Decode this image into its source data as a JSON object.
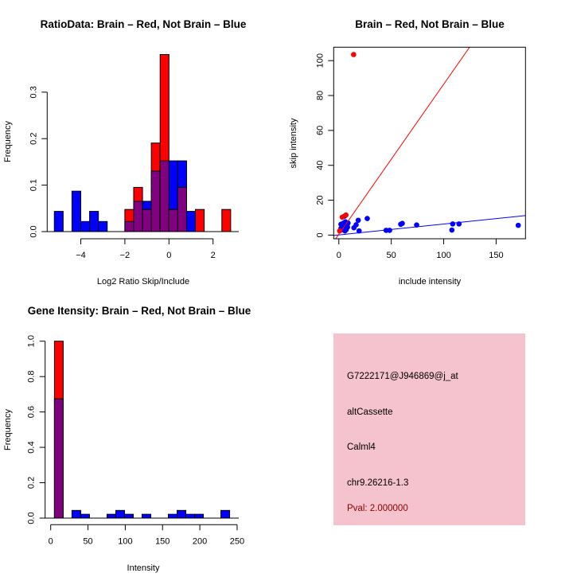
{
  "colors": {
    "brain": "#ff0000",
    "not_brain": "#0000ff",
    "overlap": "#800080",
    "panel_bg": "#f5c3cd",
    "pval": "#8b0000"
  },
  "chart_data": [
    {
      "type": "bar",
      "subtype": "overlaid-histogram",
      "title": "RatioData: Brain – Red, Not Brain – Blue",
      "xlabel": "Log2 Ratio Skip/Include",
      "ylabel": "Frequency",
      "bin_width": 0.4,
      "xticks": [
        -4,
        -2,
        0,
        2
      ],
      "yticks": [
        0,
        0.1,
        0.2,
        0.3
      ],
      "xtick_labels": [
        "−4",
        "−2",
        "0",
        "2"
      ],
      "ytick_labels": [
        "0.0",
        "0.1",
        "0.2",
        "0.3"
      ],
      "bins": [
        -5.2,
        -4.8,
        -4.4,
        -4.0,
        -3.6,
        -3.2,
        -2.8,
        -2.4,
        -2.0,
        -1.6,
        -1.2,
        -0.8,
        -0.4,
        0.0,
        0.4,
        0.8,
        1.2,
        1.6,
        2.0,
        2.4
      ],
      "series": [
        {
          "name": "Not Brain",
          "color": "#0000ff",
          "values": [
            0.0435,
            0,
            0.087,
            0.0217,
            0.0435,
            0.0217,
            0,
            0,
            0.0217,
            0.0652,
            0.0652,
            0.1304,
            0.1522,
            0.1522,
            0.1522,
            0.0435,
            0,
            0,
            0,
            0
          ]
        },
        {
          "name": "Brain",
          "color": "#ff0000",
          "values": [
            0,
            0,
            0,
            0,
            0,
            0,
            0,
            0,
            0.0476,
            0.0952,
            0.0476,
            0.1905,
            0.381,
            0.0476,
            0.0952,
            0,
            0.0476,
            0,
            0,
            0.0476
          ]
        }
      ]
    },
    {
      "type": "scatter",
      "title": "Brain – Red, Not Brain – Blue",
      "xlabel": "include intensity",
      "ylabel": "skip intensity",
      "xlim": [
        -4.9,
        178
      ],
      "ylim": [
        -2.1,
        107.7
      ],
      "xticks": [
        0,
        50,
        100,
        150
      ],
      "yticks": [
        0,
        20,
        40,
        60,
        80,
        100
      ],
      "series": [
        {
          "name": "Not Brain",
          "color": "#0000ff",
          "points": [
            [
              5.3,
              10.8
            ],
            [
              2.0,
              6.2
            ],
            [
              4.5,
              6.9
            ],
            [
              7.0,
              5.4
            ],
            [
              8.3,
              4.6
            ],
            [
              3.3,
              3.1
            ],
            [
              5.8,
              2.4
            ],
            [
              2.0,
              3.8
            ],
            [
              4.5,
              4.6
            ],
            [
              6.3,
              7.6
            ],
            [
              8.8,
              6.9
            ],
            [
              7.0,
              3.1
            ],
            [
              14.4,
              4.2
            ],
            [
              16.5,
              5.9
            ],
            [
              18.5,
              8.5
            ],
            [
              19.3,
              2.4
            ],
            [
              27.1,
              9.5
            ],
            [
              45.1,
              2.7
            ],
            [
              48.4,
              2.7
            ],
            [
              59.0,
              6.2
            ],
            [
              60.5,
              6.7
            ],
            [
              74.2,
              5.8
            ],
            [
              107.8,
              2.9
            ],
            [
              108.6,
              6.4
            ],
            [
              114.6,
              6.4
            ],
            [
              171.1,
              5.6
            ]
          ],
          "fit": {
            "intercept": 0.1,
            "slope": 0.0623
          }
        },
        {
          "name": "Brain",
          "color": "#ff0000",
          "points": [
            [
              14.1,
              103.5
            ],
            [
              6.8,
              11.5
            ],
            [
              3.3,
              10.3
            ],
            [
              0.8,
              2.4
            ]
          ],
          "fit": {
            "intercept": 0.48,
            "slope": 0.86
          }
        }
      ]
    },
    {
      "type": "bar",
      "subtype": "overlaid-histogram",
      "title": "Gene Itensity: Brain – Red, Not Brain – Blue",
      "xlabel": "Intensity",
      "ylabel": "Frequency",
      "bin_width": 11.75,
      "xticks": [
        0,
        50,
        100,
        150,
        200,
        250
      ],
      "yticks": [
        0,
        0.2,
        0.4,
        0.6,
        0.8,
        1.0
      ],
      "ytick_labels": [
        "0.0",
        "0.2",
        "0.4",
        "0.6",
        "0.8",
        "1.0"
      ],
      "bins": [
        5,
        16.75,
        28.5,
        40.25,
        52,
        63.75,
        75.5,
        87.25,
        99,
        110.75,
        122.5,
        134.25,
        146,
        157.75,
        169.5,
        181.25,
        193,
        204.75,
        216.5,
        228.25
      ],
      "series": [
        {
          "name": "Not Brain",
          "color": "#0000ff",
          "values": [
            0.674,
            0,
            0.0435,
            0.0217,
            0,
            0,
            0.0217,
            0.0435,
            0.0217,
            0,
            0.0217,
            0,
            0,
            0.0217,
            0.0435,
            0.0217,
            0.0217,
            0,
            0,
            0.0435
          ]
        },
        {
          "name": "Brain",
          "color": "#ff0000",
          "values": [
            1.0,
            0,
            0,
            0,
            0,
            0,
            0,
            0,
            0,
            0,
            0,
            0,
            0,
            0,
            0,
            0,
            0,
            0,
            0,
            0
          ]
        }
      ]
    }
  ],
  "info_panel": {
    "probe_id": "G7222171@J946869@j_at",
    "event_type": "altCassette",
    "gene": "Calml4",
    "location": "chr9.26216-1.3",
    "pval": "Pval: 2.000000"
  }
}
